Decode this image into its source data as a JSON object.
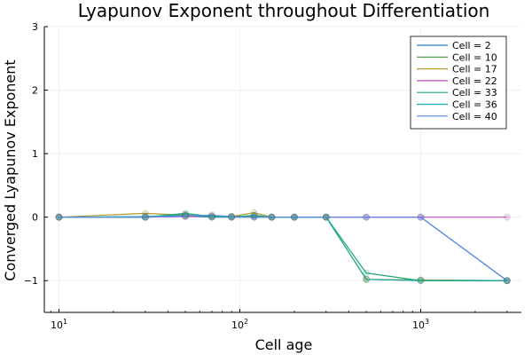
{
  "chart_data": {
    "type": "line",
    "title": "Lyapunov Exponent throughout Differentiation",
    "xlabel": "Cell age",
    "ylabel": "Converged Lyapunov Exponent",
    "xscale": "log10",
    "xlim": [
      8.3,
      3600
    ],
    "ylim": [
      -1.5,
      3
    ],
    "xticks": [
      {
        "value": 10,
        "base": "10",
        "exp": "1"
      },
      {
        "value": 100,
        "base": "10",
        "exp": "2"
      },
      {
        "value": 1000,
        "base": "10",
        "exp": "3"
      }
    ],
    "yticks": [
      {
        "value": -1,
        "label": "−1"
      },
      {
        "value": 0,
        "label": "0"
      },
      {
        "value": 1,
        "label": "1"
      },
      {
        "value": 2,
        "label": "2"
      },
      {
        "value": 3,
        "label": "3"
      }
    ],
    "grid": true,
    "legend_position": "top-right",
    "x": [
      10,
      30,
      50,
      70,
      90,
      120,
      150,
      200,
      300,
      500,
      1000,
      3000
    ],
    "series": [
      {
        "name": "Cell = 2",
        "color": "#2f7fc0",
        "values": [
          0,
          0,
          0.01,
          0.01,
          0,
          0.01,
          0,
          0,
          0,
          0,
          0,
          -1
        ]
      },
      {
        "name": "Cell = 10",
        "color": "#3a9a3a",
        "values": [
          0,
          0,
          0.04,
          0,
          0.01,
          0.02,
          0,
          0,
          0,
          -0.98,
          -0.99,
          -1
        ]
      },
      {
        "name": "Cell = 17",
        "color": "#b09a2a",
        "values": [
          0,
          0.06,
          0.03,
          0.02,
          0.01,
          0.07,
          0,
          0,
          0,
          -0.98,
          -0.99,
          -1
        ]
      },
      {
        "name": "Cell = 22",
        "color": "#c04ec0",
        "values": [
          0,
          0,
          0.01,
          0,
          0,
          0,
          0,
          0,
          0,
          0,
          0,
          0
        ]
      },
      {
        "name": "Cell = 33",
        "color": "#1aaa7a",
        "values": [
          0,
          0,
          0.06,
          0.01,
          0,
          0.03,
          0,
          0,
          0,
          -0.88,
          -1,
          -1
        ]
      },
      {
        "name": "Cell = 36",
        "color": "#1aaaaa",
        "values": [
          0,
          0.01,
          0.03,
          0,
          0,
          0,
          0,
          0,
          0,
          -0.98,
          -1,
          -1
        ]
      },
      {
        "name": "Cell = 40",
        "color": "#5a8ae6",
        "values": [
          0,
          0,
          0.02,
          0.03,
          0.01,
          0,
          0,
          0,
          0,
          0,
          0,
          -1
        ]
      }
    ]
  }
}
